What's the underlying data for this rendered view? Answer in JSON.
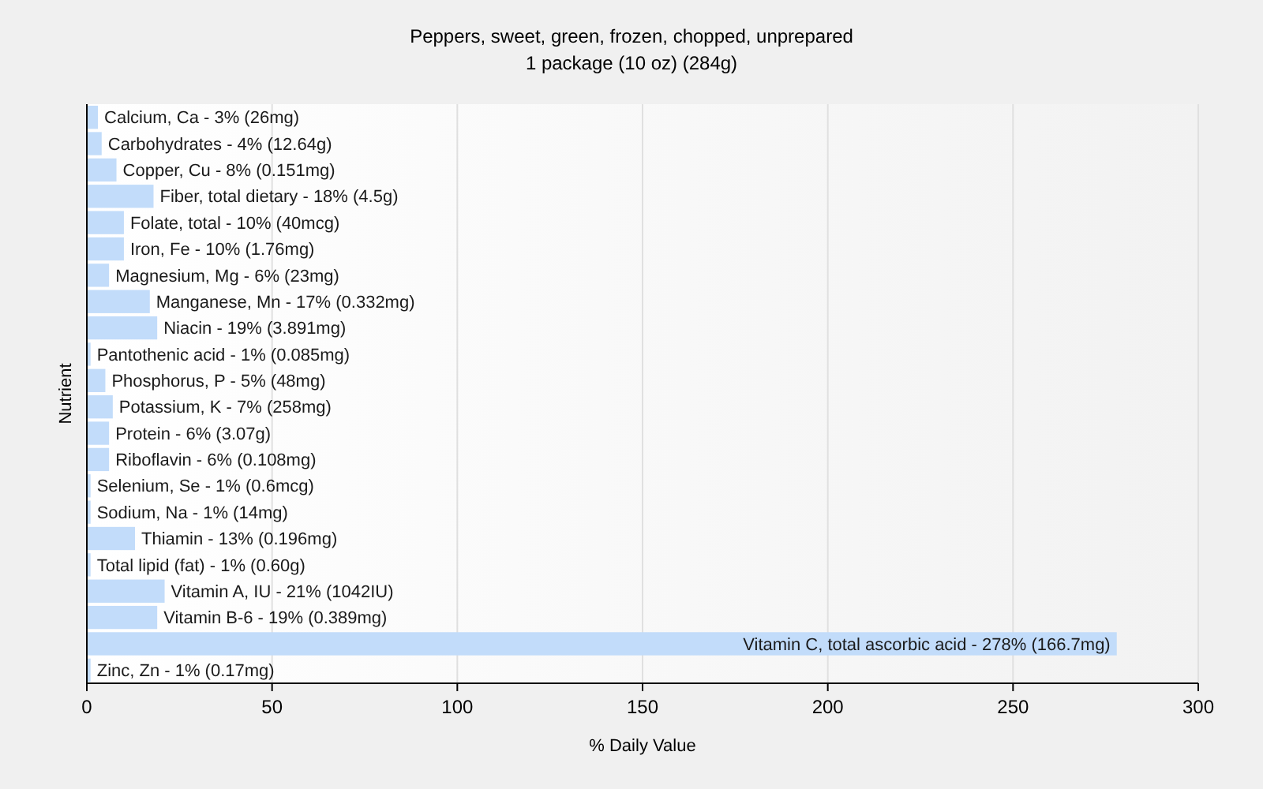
{
  "chart_data": {
    "type": "bar",
    "orientation": "horizontal",
    "title": "Peppers, sweet, green, frozen, chopped, unprepared",
    "subtitle": "1 package (10 oz) (284g)",
    "xlabel": "% Daily Value",
    "ylabel": "Nutrient",
    "categories": [
      "Calcium, Ca - 3% (26mg)",
      "Carbohydrates - 4% (12.64g)",
      "Copper, Cu - 8% (0.151mg)",
      "Fiber, total dietary - 18% (4.5g)",
      "Folate, total - 10% (40mcg)",
      "Iron, Fe - 10% (1.76mg)",
      "Magnesium, Mg - 6% (23mg)",
      "Manganese, Mn - 17% (0.332mg)",
      "Niacin - 19% (3.891mg)",
      "Pantothenic acid - 1% (0.085mg)",
      "Phosphorus, P - 5% (48mg)",
      "Potassium, K - 7% (258mg)",
      "Protein - 6% (3.07g)",
      "Riboflavin - 6% (0.108mg)",
      "Selenium, Se - 1% (0.6mcg)",
      "Sodium, Na - 1% (14mg)",
      "Thiamin - 13% (0.196mg)",
      "Total lipid (fat) - 1% (0.60g)",
      "Vitamin A, IU - 21% (1042IU)",
      "Vitamin B-6 - 19% (0.389mg)",
      "Vitamin C, total ascorbic acid - 278% (166.7mg)",
      "Zinc, Zn - 1% (0.17mg)"
    ],
    "values": [
      3,
      4,
      8,
      18,
      10,
      10,
      6,
      17,
      19,
      1,
      5,
      7,
      6,
      6,
      1,
      1,
      13,
      1,
      21,
      19,
      278,
      1
    ],
    "color": "#c2dcfa",
    "xlim": [
      0,
      300
    ],
    "xticks": [
      0,
      50,
      100,
      150,
      200,
      250,
      300
    ],
    "grid": "x"
  }
}
